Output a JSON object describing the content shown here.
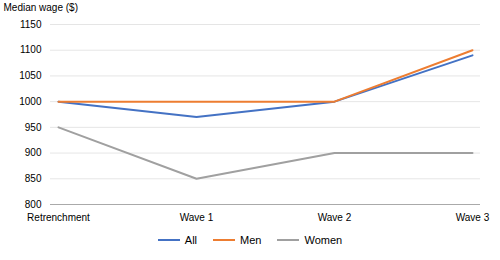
{
  "chart_data": {
    "type": "line",
    "categories": [
      "Retrenchment",
      "Wave 1",
      "Wave 2",
      "Wave 3"
    ],
    "series": [
      {
        "name": "All",
        "color": "#4472C4",
        "values": [
          1000,
          970,
          1000,
          1090
        ]
      },
      {
        "name": "Men",
        "color": "#ED7D31",
        "values": [
          1000,
          1000,
          1000,
          1100
        ]
      },
      {
        "name": "Women",
        "color": "#A0A0A0",
        "values": [
          950,
          850,
          900,
          900
        ]
      }
    ],
    "ylabel": "Median wage ($)",
    "ylim": [
      800,
      1150
    ],
    "yticks": [
      800,
      850,
      900,
      950,
      1000,
      1050,
      1100,
      1150
    ],
    "grid": true,
    "legend": "bottom"
  }
}
